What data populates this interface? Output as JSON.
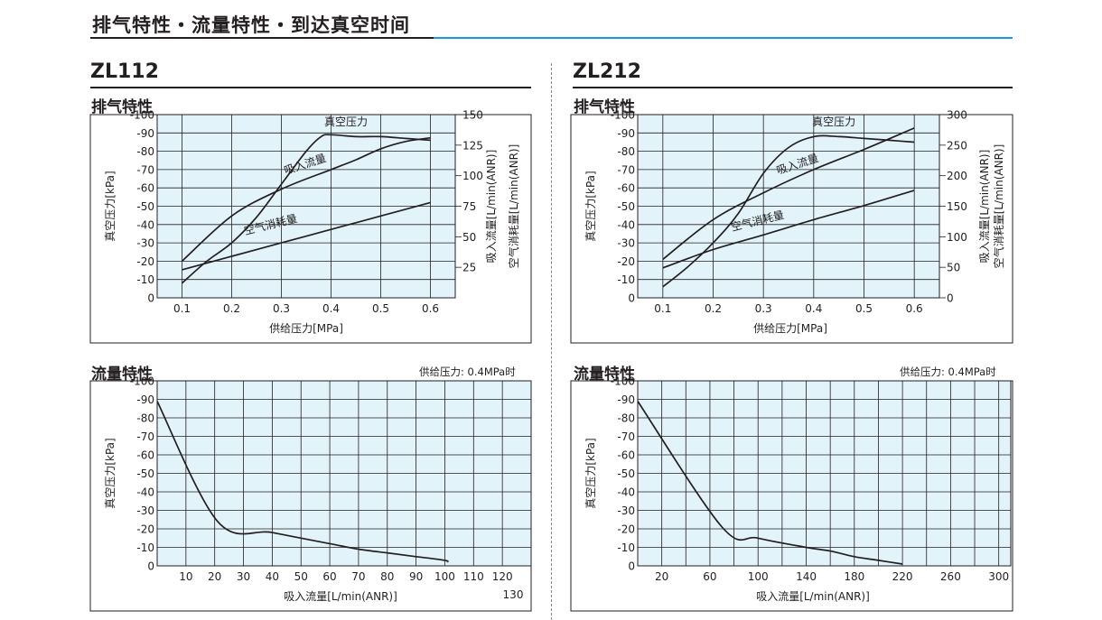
{
  "page_title": "排气特性・流量特性・到达真空时间",
  "colors": {
    "accent": "#1a9bd7",
    "plot_bg": "#e2f3fa",
    "ink": "#231f20"
  },
  "models": [
    {
      "name": "ZL112",
      "exhaust_title": "排气特性",
      "flow_title": "流量特性",
      "flow_note": "供给压力: 0.4MPa时"
    },
    {
      "name": "ZL212",
      "exhaust_title": "排气特性",
      "flow_title": "流量特性",
      "flow_note": "供给压力: 0.4MPa时"
    }
  ],
  "chart_data": [
    {
      "type": "line",
      "model": "ZL112",
      "title": "排气特性",
      "xlabel": "供给压力[MPa]",
      "ylabel": "真空压力[kPa]",
      "y2label_1": "吸入流量[L/min(ANR)]",
      "y2label_2": "空气消耗量[L/min(ANR)]",
      "xlim": [
        0.05,
        0.65
      ],
      "ylim": [
        0,
        -100
      ],
      "x_ticks": [
        0.1,
        0.2,
        0.3,
        0.4,
        0.5,
        0.6
      ],
      "x_tick_labels": [
        "0.1",
        "0.2",
        "0.3",
        "0.4",
        "0.5",
        "0.6"
      ],
      "y_ticks": [
        0,
        -10,
        -20,
        -30,
        -40,
        -50,
        -60,
        -70,
        -80,
        -90,
        -100
      ],
      "y_tick_labels": [
        "0",
        "-10",
        "-20",
        "-30",
        "-40",
        "-50",
        "-60",
        "-70",
        "-80",
        "-90",
        "-100"
      ],
      "y2lim": [
        0,
        150
      ],
      "y2_ticks": [
        25,
        50,
        75,
        100,
        125,
        150
      ],
      "y2_tick_labels": [
        "25",
        "50",
        "75",
        "100",
        "125",
        "150"
      ],
      "series": [
        {
          "name": "真空压力",
          "axis": "left",
          "x": [
            0.1,
            0.15,
            0.2,
            0.25,
            0.3,
            0.35,
            0.38,
            0.4,
            0.45,
            0.5,
            0.55,
            0.6
          ],
          "y": [
            -8,
            -20,
            -30,
            -44,
            -62,
            -80,
            -88,
            -89,
            -88,
            -88,
            -87,
            -86
          ]
        },
        {
          "name": "吸入流量",
          "axis": "right",
          "x": [
            0.1,
            0.2,
            0.3,
            0.4,
            0.45,
            0.5,
            0.55,
            0.6
          ],
          "y": [
            30,
            67,
            89,
            105,
            113,
            122,
            128,
            131
          ]
        },
        {
          "name": "空气消耗量",
          "axis": "right",
          "x": [
            0.1,
            0.2,
            0.3,
            0.4,
            0.5,
            0.6
          ],
          "y": [
            23,
            34,
            45,
            56,
            67,
            78
          ]
        }
      ],
      "labels": [
        {
          "text": "真空压力",
          "x": 0.43,
          "y": -94,
          "rot": 0
        },
        {
          "text": "吸入流量",
          "x": 0.35,
          "y": -71,
          "rot": -18
        },
        {
          "text": "空气消耗量",
          "x": 0.28,
          "y": -38,
          "rot": -14
        }
      ]
    },
    {
      "type": "line",
      "model": "ZL112",
      "title": "流量特性",
      "xlabel": "吸入流量[L/min(ANR)]",
      "ylabel": "真空压力[kPa]",
      "xlim": [
        0,
        130
      ],
      "ylim": [
        0,
        -100
      ],
      "x_ticks": [
        10,
        20,
        30,
        40,
        50,
        60,
        70,
        80,
        90,
        100,
        110,
        120
      ],
      "x_tick_labels": [
        "10",
        "20",
        "30",
        "40",
        "50",
        "60",
        "70",
        "80",
        "90",
        "100",
        "110",
        "120"
      ],
      "x_extra_label": "130",
      "y_ticks": [
        0,
        -10,
        -20,
        -30,
        -40,
        -50,
        -60,
        -70,
        -80,
        -90,
        -100
      ],
      "y_tick_labels": [
        "0",
        "-10",
        "-20",
        "-30",
        "-40",
        "-50",
        "-60",
        "-70",
        "-80",
        "-90",
        "-100"
      ],
      "series": [
        {
          "name": "",
          "x": [
            0,
            21,
            40,
            60,
            70,
            80,
            90,
            100,
            101
          ],
          "y": [
            -89,
            -24,
            -18,
            -12,
            -9,
            -7,
            -5,
            -3,
            -2
          ]
        }
      ]
    },
    {
      "type": "line",
      "model": "ZL212",
      "title": "排气特性",
      "xlabel": "供给压力[MPa]",
      "ylabel": "真空压力[kPa]",
      "y2label_1": "吸入流量[L/min(ANR)]",
      "y2label_2": "空气消耗量[L/min(ANR)]",
      "xlim": [
        0.05,
        0.65
      ],
      "ylim": [
        0,
        -100
      ],
      "x_ticks": [
        0.1,
        0.2,
        0.3,
        0.4,
        0.5,
        0.6
      ],
      "x_tick_labels": [
        "0.1",
        "0.2",
        "0.3",
        "0.4",
        "0.5",
        "0.6"
      ],
      "y_ticks": [
        0,
        -10,
        -20,
        -30,
        -40,
        -50,
        -60,
        -70,
        -80,
        -90,
        -100
      ],
      "y_tick_labels": [
        "0",
        "-10",
        "-20",
        "-30",
        "-40",
        "-50",
        "-60",
        "-70",
        "-80",
        "-90",
        "-100"
      ],
      "y2lim": [
        0,
        300
      ],
      "y2_ticks": [
        0,
        50,
        100,
        150,
        200,
        250,
        300
      ],
      "y2_tick_labels": [
        "0",
        "50",
        "100",
        "150",
        "200",
        "250",
        "300"
      ],
      "series": [
        {
          "name": "真空压力",
          "axis": "left",
          "x": [
            0.1,
            0.15,
            0.2,
            0.25,
            0.3,
            0.35,
            0.4,
            0.45,
            0.5,
            0.55,
            0.6
          ],
          "y": [
            -6,
            -17,
            -30,
            -46,
            -68,
            -82,
            -88,
            -88,
            -87,
            -86,
            -85
          ]
        },
        {
          "name": "吸入流量",
          "axis": "right",
          "x": [
            0.1,
            0.2,
            0.3,
            0.4,
            0.5,
            0.6
          ],
          "y": [
            63,
            128,
            172,
            210,
            243,
            278
          ]
        },
        {
          "name": "空气消耗量",
          "axis": "right",
          "x": [
            0.1,
            0.2,
            0.3,
            0.4,
            0.5,
            0.6
          ],
          "y": [
            49,
            79,
            103,
            128,
            151,
            176
          ]
        }
      ],
      "labels": [
        {
          "text": "真空压力",
          "x": 0.44,
          "y": -94,
          "rot": 0
        },
        {
          "text": "吸入流量",
          "x": 0.37,
          "y": -71,
          "rot": -18
        },
        {
          "text": "空气消耗量",
          "x": 0.29,
          "y": -40,
          "rot": -14
        }
      ]
    },
    {
      "type": "line",
      "model": "ZL212",
      "title": "流量特性",
      "xlabel": "吸入流量[L/min(ANR)]",
      "ylabel": "真空压力[kPa]",
      "xlim": [
        0,
        310
      ],
      "ylim": [
        0,
        -100
      ],
      "x_ticks": [
        20,
        60,
        100,
        140,
        180,
        220,
        260,
        300
      ],
      "x_tick_labels": [
        "20",
        "60",
        "100",
        "140",
        "180",
        "220",
        "260",
        "300"
      ],
      "x_minor": [
        40,
        80,
        120,
        160,
        200,
        240,
        280
      ],
      "y_ticks": [
        0,
        -10,
        -20,
        -30,
        -40,
        -50,
        -60,
        -70,
        -80,
        -90,
        -100
      ],
      "y_tick_labels": [
        "0",
        "-10",
        "-20",
        "-30",
        "-40",
        "-50",
        "-60",
        "-70",
        "-80",
        "-90",
        "-100"
      ],
      "series": [
        {
          "name": "",
          "x": [
            0,
            70,
            100,
            140,
            160,
            180,
            200,
            220
          ],
          "y": [
            -89,
            -21,
            -15,
            -10,
            -8,
            -5,
            -3,
            -1
          ]
        }
      ]
    }
  ]
}
